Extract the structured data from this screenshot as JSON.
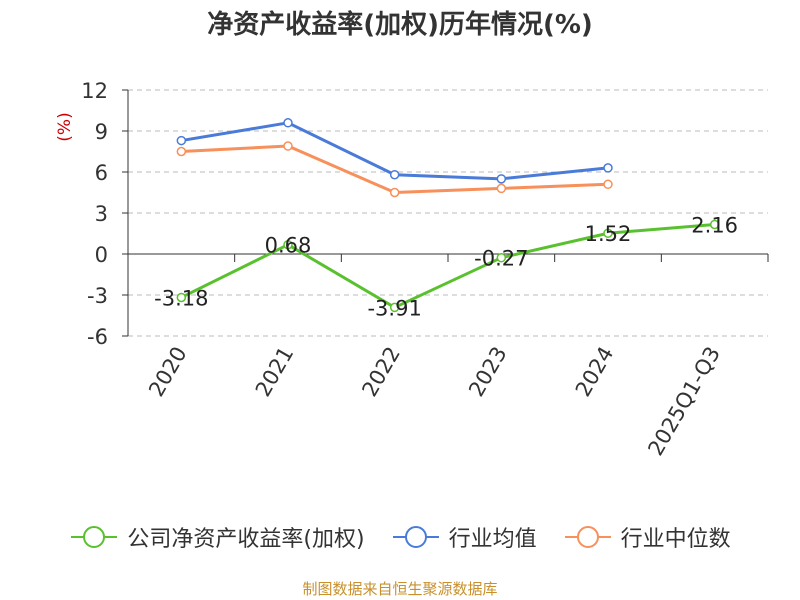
{
  "chart_data": {
    "type": "line",
    "title": "净资产收益率(加权)历年情况(%)",
    "ylabel": "(%)",
    "categories": [
      "2020",
      "2021",
      "2022",
      "2023",
      "2024",
      "2025Q1-Q3"
    ],
    "ylim": [
      -6,
      12
    ],
    "yticks": [
      12,
      9,
      6,
      3,
      0,
      -3,
      -6
    ],
    "ytick_labels": [
      "12",
      "9",
      "6",
      "3",
      "0",
      "-3",
      "-6"
    ],
    "grid": true,
    "legend_position": "bottom",
    "series": [
      {
        "name": "公司净资产收益率(加权)",
        "color": "#5ac12e",
        "values": [
          -3.18,
          0.68,
          -3.91,
          -0.27,
          1.52,
          2.16
        ],
        "data_labels": [
          "-3.18",
          "0.68",
          "-3.91",
          "-0.27",
          "1.52",
          "2.16"
        ]
      },
      {
        "name": "行业均值",
        "color": "#4a7bd8",
        "values": [
          8.3,
          9.6,
          5.8,
          5.5,
          6.3,
          null
        ]
      },
      {
        "name": "行业中位数",
        "color": "#f7905a",
        "values": [
          7.5,
          7.9,
          4.5,
          4.8,
          5.1,
          null
        ]
      }
    ]
  },
  "footer": {
    "source": "制图数据来自恒生聚源数据库"
  },
  "colors": {
    "axis": "#333333",
    "grid": "#bbbbbb",
    "ylabel": "#cc0000",
    "source": "#c8902c"
  }
}
